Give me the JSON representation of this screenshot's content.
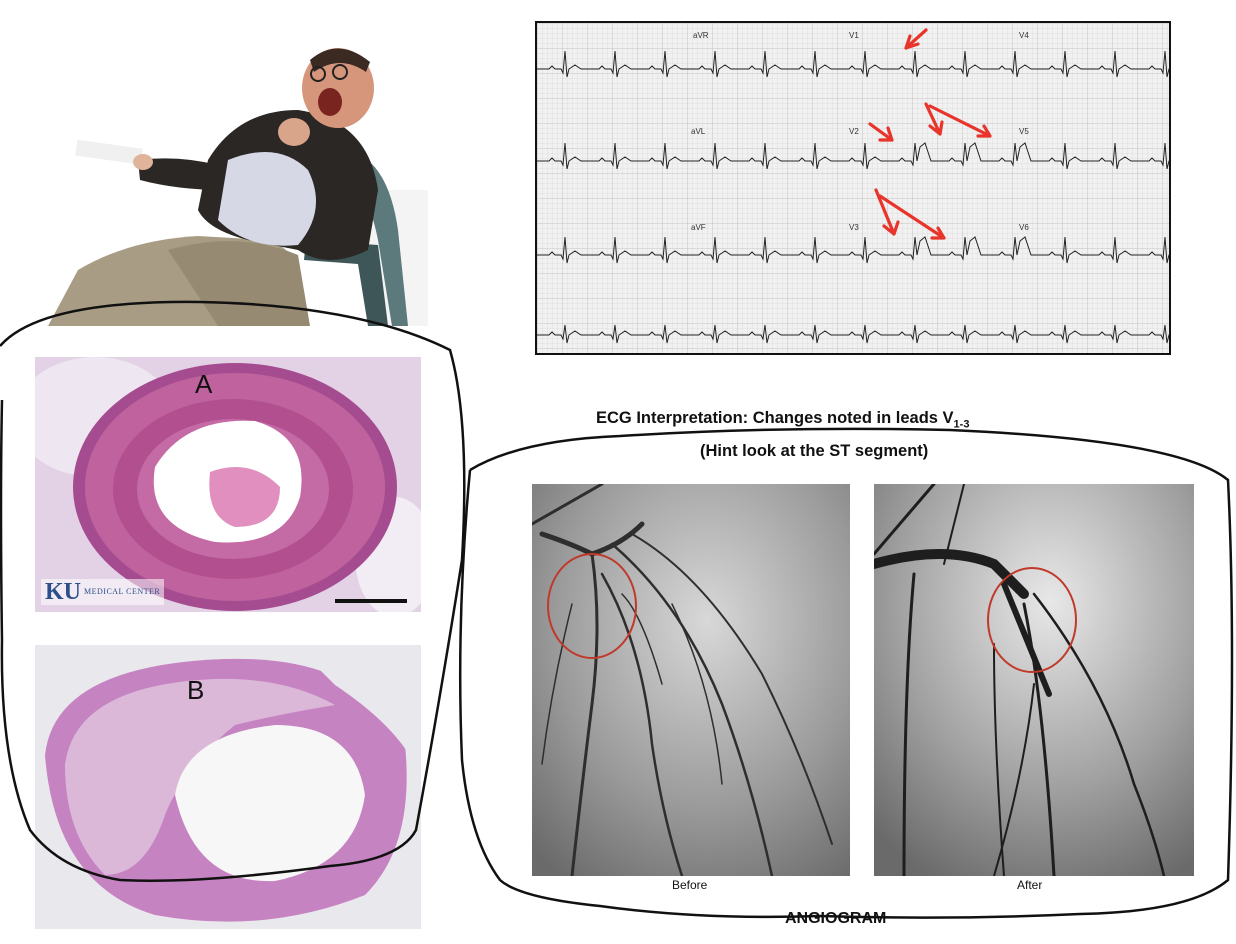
{
  "ecg": {
    "leads": {
      "avr": "aVR",
      "v1": "V1",
      "v4": "V4",
      "avl": "aVL",
      "v2": "V2",
      "v5": "V5",
      "avf": "aVF",
      "v3": "V3",
      "v6": "V6"
    },
    "caption": {
      "line1_prefix": "ECG Interpretation:  Changes noted in leads V",
      "line1_subscript": "1-3",
      "line2": "(Hint look at the ST segment)"
    },
    "arrow_color": "#e8342a"
  },
  "histology": {
    "panel_a_letter": "A",
    "panel_b_letter": "B",
    "logo_mark": "KU",
    "logo_text": "MEDICAL CENTER"
  },
  "angiogram": {
    "before_label": "Before",
    "after_label": "After",
    "title": "ANGIOGRAM",
    "circle_color": "#c0392b"
  }
}
